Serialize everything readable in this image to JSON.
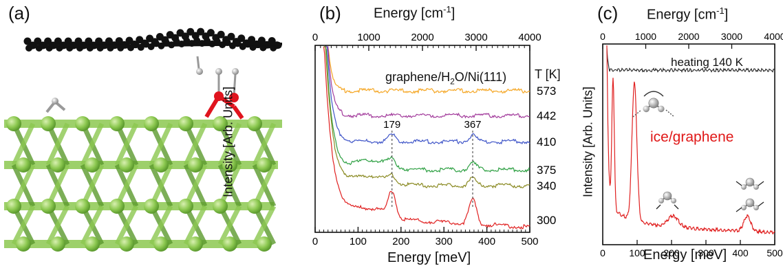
{
  "panels": {
    "a": {
      "letter": "(a)"
    },
    "b": {
      "letter": "(b)",
      "top_axis_title": "Energy [cm",
      "top_axis_sup": "-1",
      "top_axis_close": "]",
      "bottom_axis_title": "Energy [meV]",
      "y_axis_title": "Intensity [Arb. Units]",
      "top_ticks": [
        "0",
        "1000",
        "2000",
        "3000",
        "4000"
      ],
      "bottom_ticks": [
        "0",
        "100",
        "200",
        "300",
        "400",
        "500"
      ],
      "sample_label_pre": "graphene/H",
      "sample_label_sub": "2",
      "sample_label_post": "O/Ni(111)",
      "temp_header": "T [K]",
      "temperatures": [
        "573",
        "442",
        "410",
        "375",
        "340",
        "300"
      ],
      "peak_labels": [
        "179",
        "367"
      ]
    },
    "c": {
      "letter": "(c)",
      "top_axis_title": "Energy [cm",
      "top_axis_sup": "-1",
      "top_axis_close": "]",
      "bottom_axis_title": "Energy [meV]",
      "y_axis_title": "Intensity [Arb. Units]",
      "top_ticks": [
        "0",
        "1000",
        "2000",
        "3000",
        "4000"
      ],
      "bottom_ticks": [
        "0",
        "100",
        "200",
        "300",
        "400",
        "500"
      ],
      "heating_label": "heating 140 K",
      "ice_label": "ice/graphene"
    }
  },
  "colors": {
    "carbon": "#111111",
    "hydrogen": "#bfbfbf",
    "oxygen": "#e0141e",
    "nickel": "#8cc850",
    "nickel_dark": "#5c9a2e",
    "ice_label": "#e01818"
  },
  "chart_data": [
    {
      "type": "line",
      "xlabel": "Energy [meV]",
      "x2label": "Energy [cm-1]",
      "ylabel": "Intensity [Arb. Units]",
      "xlim": [
        0,
        500
      ],
      "x2lim": [
        0,
        4000
      ],
      "series": [
        {
          "name": "573",
          "color": "#f5a623",
          "x": [
            25,
            50,
            100,
            200,
            300,
            400,
            500
          ],
          "offset": 5.2,
          "peaks": []
        },
        {
          "name": "442",
          "color": "#a23a9b",
          "x": [
            25,
            50,
            100,
            200,
            300,
            400,
            500
          ],
          "offset": 4.4,
          "peaks": []
        },
        {
          "name": "410",
          "color": "#3f55c8",
          "x": [
            25,
            50,
            100,
            200,
            300,
            400,
            500
          ],
          "offset": 3.6,
          "peaks": [
            179,
            367
          ]
        },
        {
          "name": "375",
          "color": "#2ea043",
          "x": [
            25,
            50,
            100,
            200,
            300,
            400,
            500
          ],
          "offset": 2.85,
          "peaks": [
            179,
            367
          ]
        },
        {
          "name": "340",
          "color": "#8a8a22",
          "x": [
            25,
            50,
            100,
            200,
            300,
            400,
            500
          ],
          "offset": 2.2,
          "peaks": [
            179,
            367
          ]
        },
        {
          "name": "300",
          "color": "#e02020",
          "x": [
            25,
            50,
            100,
            200,
            300,
            400,
            500
          ],
          "offset": 1.0,
          "peaks": [
            179,
            367
          ]
        }
      ],
      "annotations": [
        "179",
        "367"
      ]
    },
    {
      "type": "line",
      "xlabel": "Energy [meV]",
      "x2label": "Energy [cm-1]",
      "ylabel": "Intensity [Arb. Units]",
      "xlim": [
        0,
        500
      ],
      "x2lim": [
        0,
        4000
      ],
      "series": [
        {
          "name": "heating 140 K",
          "color": "#222222"
        },
        {
          "name": "ice/graphene",
          "color": "#e02020",
          "peaks": [
            30,
            92,
            205,
            420
          ]
        }
      ]
    }
  ]
}
